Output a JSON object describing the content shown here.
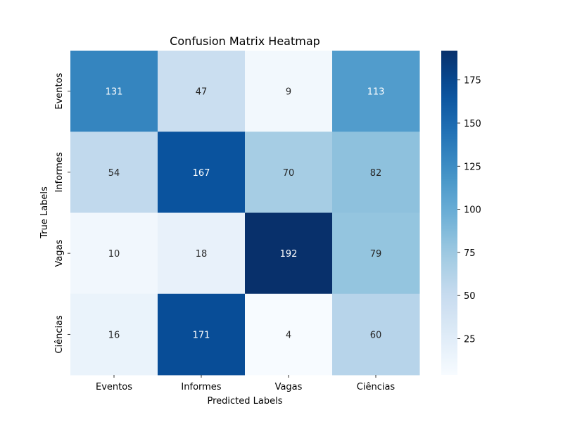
{
  "chart_data": {
    "type": "heatmap",
    "title": "Confusion Matrix Heatmap",
    "xlabel": "Predicted Labels",
    "ylabel": "True Labels",
    "x_categories": [
      "Eventos",
      "Informes",
      "Vagas",
      "Ciências"
    ],
    "y_categories": [
      "Eventos",
      "Informes",
      "Vagas",
      "Ciências"
    ],
    "values": [
      [
        131,
        47,
        9,
        113
      ],
      [
        54,
        167,
        70,
        82
      ],
      [
        10,
        18,
        192,
        79
      ],
      [
        16,
        171,
        4,
        60
      ]
    ],
    "colormap": "Blues",
    "vmin": 4,
    "vmax": 192,
    "colorbar_ticks": [
      25,
      50,
      75,
      100,
      125,
      150,
      175
    ]
  }
}
